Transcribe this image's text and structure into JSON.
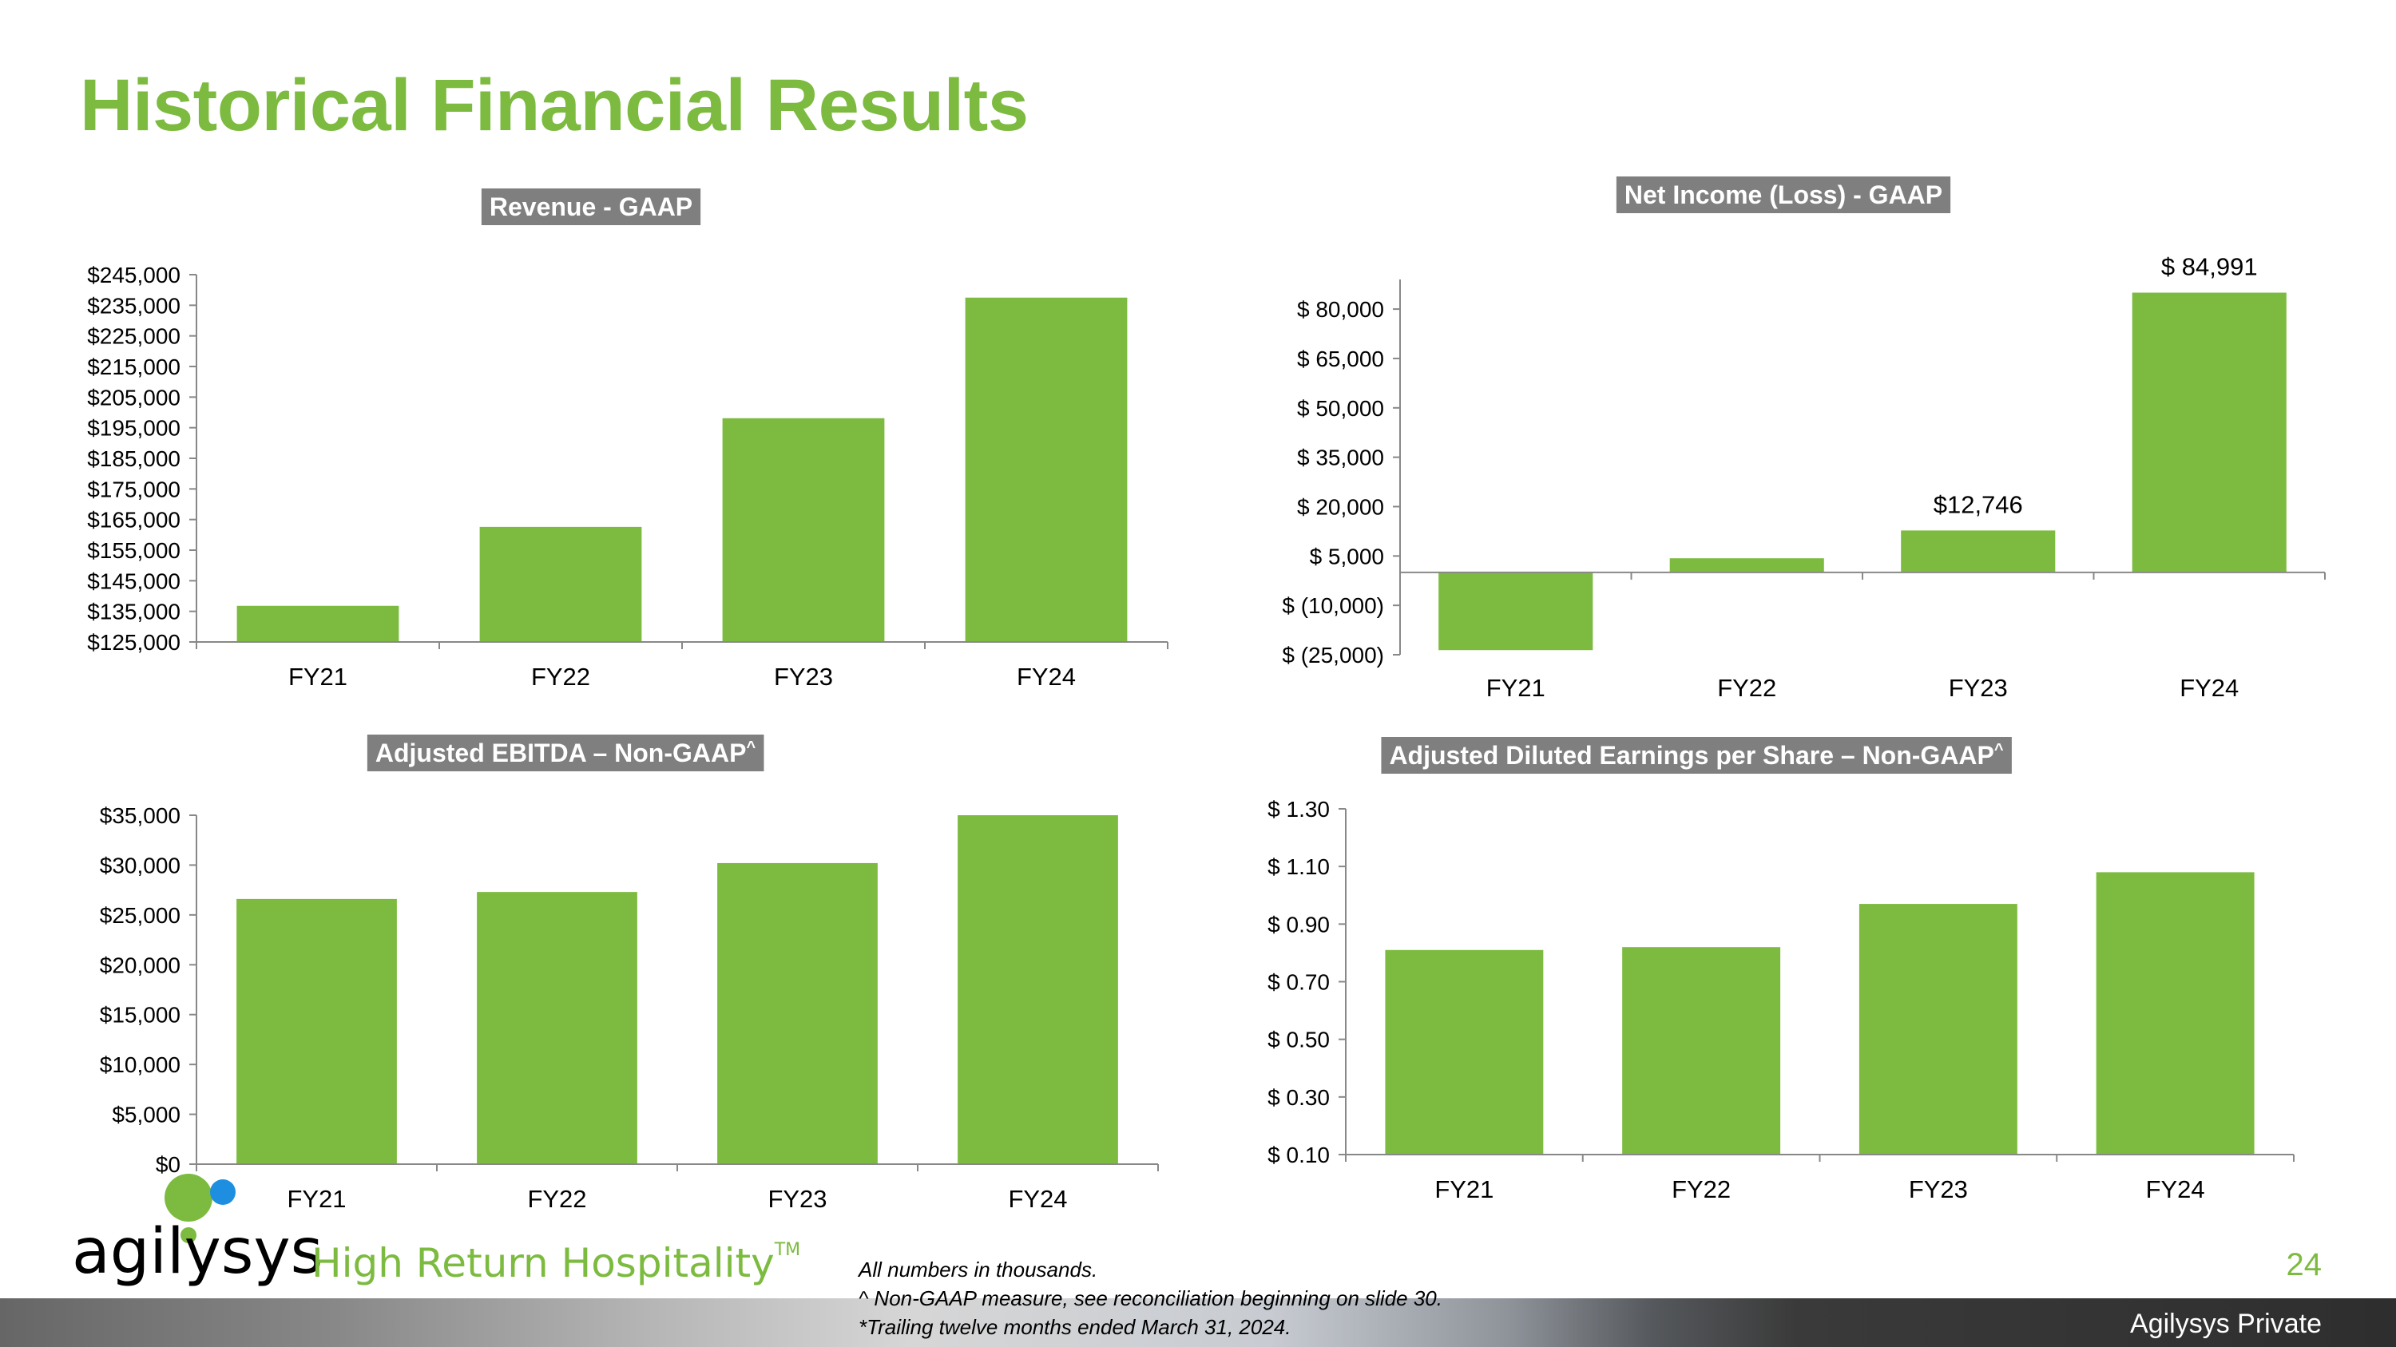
{
  "slide": {
    "title": "Historical Financial Results",
    "page_number": "24",
    "private_label": "Agilysys Private",
    "footnotes": [
      "All numbers in thousands.",
      "^ Non-GAAP measure, see reconciliation beginning on slide 30.",
      "*Trailing twelve months ended March 31, 2024."
    ]
  },
  "brand": {
    "name": "agilysys",
    "tagline": "High Return Hospitality",
    "tagline_mark": "TM",
    "colors": {
      "green": "#7cbb3f",
      "blue": "#1e8fe0",
      "title_box": "#7f7f7f"
    }
  },
  "chart_data": [
    {
      "id": "revenue",
      "type": "bar",
      "title": "Revenue - GAAP",
      "categories": [
        "FY21",
        "FY22",
        "FY23",
        "FY24"
      ],
      "values": [
        136800,
        162600,
        198100,
        237500
      ],
      "ylim": [
        125000,
        245000
      ],
      "yticks": [
        125000,
        135000,
        145000,
        155000,
        165000,
        175000,
        185000,
        195000,
        205000,
        215000,
        225000,
        235000,
        245000
      ],
      "ytick_labels": [
        "$125,000",
        "$135,000",
        "$145,000",
        "$155,000",
        "$165,000",
        "$175,000",
        "$185,000",
        "$195,000",
        "$205,000",
        "$215,000",
        "$225,000",
        "$235,000",
        "$245,000"
      ],
      "data_labels": [],
      "grid": false
    },
    {
      "id": "net_income",
      "type": "bar",
      "title": "Net Income (Loss) - GAAP",
      "categories": [
        "FY21",
        "FY22",
        "FY23",
        "FY24"
      ],
      "values": [
        -23600,
        4300,
        12746,
        84991
      ],
      "ylim": [
        -25000,
        89000
      ],
      "yticks": [
        -25000,
        -10000,
        5000,
        20000,
        35000,
        50000,
        65000,
        80000
      ],
      "ytick_labels": [
        "$ (25,000)",
        "$ (10,000)",
        "$ 5,000",
        "$ 20,000",
        "$ 35,000",
        "$ 50,000",
        "$ 65,000",
        "$ 80,000"
      ],
      "data_labels": [
        "",
        "",
        "$12,746",
        "$ 84,991"
      ],
      "grid": false
    },
    {
      "id": "adj_ebitda",
      "type": "bar",
      "title": "Adjusted EBITDA – Non-GAAP",
      "title_mark": "^",
      "categories": [
        "FY21",
        "FY22",
        "FY23",
        "FY24"
      ],
      "values": [
        26600,
        27300,
        30200,
        35000
      ],
      "ylim": [
        0,
        35000
      ],
      "yticks": [
        0,
        5000,
        10000,
        15000,
        20000,
        25000,
        30000,
        35000
      ],
      "ytick_labels": [
        "$0",
        "$5,000",
        "$10,000",
        "$15,000",
        "$20,000",
        "$25,000",
        "$30,000",
        "$35,000"
      ],
      "data_labels": [],
      "grid": false
    },
    {
      "id": "adj_eps",
      "type": "bar",
      "title": "Adjusted Diluted Earnings per Share – Non-GAAP",
      "title_mark": "^",
      "categories": [
        "FY21",
        "FY22",
        "FY23",
        "FY24"
      ],
      "values": [
        0.81,
        0.82,
        0.97,
        1.08
      ],
      "ylim": [
        0.1,
        1.3
      ],
      "yticks": [
        0.1,
        0.3,
        0.5,
        0.7,
        0.9,
        1.1,
        1.3
      ],
      "ytick_labels": [
        "$ 0.10",
        "$ 0.30",
        "$ 0.50",
        "$ 0.70",
        "$ 0.90",
        "$ 1.10",
        "$ 1.30"
      ],
      "data_labels": [],
      "grid": false
    }
  ]
}
